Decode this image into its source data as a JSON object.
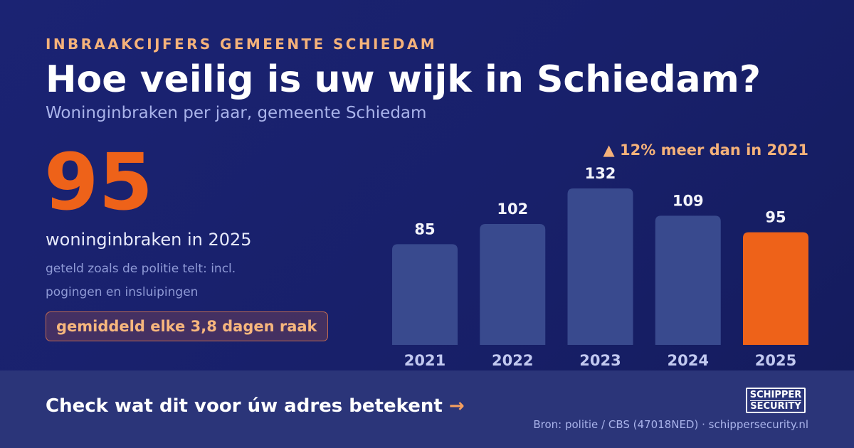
{
  "header": {
    "eyebrow": "INBRAAKCIJFERS GEMEENTE SCHIEDAM",
    "title": "Hoe veilig is uw wijk in Schiedam?",
    "subtitle": "Woninginbraken per jaar, gemeente Schiedam"
  },
  "highlight": {
    "value": "95",
    "caption": "woninginbraken in 2025",
    "note": "geteld zoals de politie telt: incl. pogingen en insluipingen",
    "badge": "gemiddeld elke 3,8 dagen raak"
  },
  "change_label": "▲ 12% meer dan in 2021",
  "chart_data": {
    "type": "bar",
    "title": "",
    "xlabel": "",
    "ylabel": "",
    "categories": [
      "2021",
      "2022",
      "2023",
      "2024",
      "2025"
    ],
    "values": [
      85,
      102,
      132,
      109,
      95
    ],
    "data_labels": [
      "85",
      "102",
      "132",
      "109",
      "95"
    ],
    "highlight_category": "2025",
    "ylim": [
      0,
      140
    ],
    "grid": false,
    "legend": "none"
  },
  "colors": {
    "bar": "#394a8e",
    "bar_highlight": "#ee6219",
    "data_label": "#f3f4fb",
    "category_label": "#c2c9f0"
  },
  "footer": {
    "cta_text": "Check wat dit voor úw adres betekent",
    "cta_arrow": "→",
    "logo_line1": "SCHIPPER",
    "logo_line2": "SECURITY",
    "source": "Bron: politie / CBS (47018NED) · schippersecurity.nl"
  }
}
